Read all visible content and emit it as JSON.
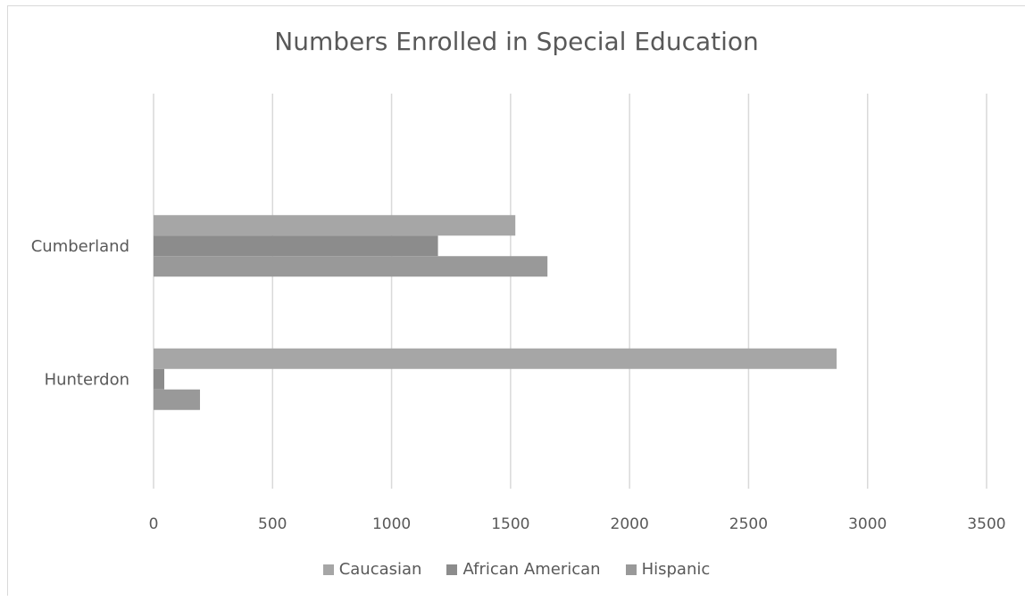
{
  "chart_data": {
    "type": "bar",
    "orientation": "horizontal",
    "title": "Numbers Enrolled in Special Education",
    "categories": [
      "Cumberland",
      "Hunterdon"
    ],
    "series": [
      {
        "name": "Caucasian",
        "values": [
          1520,
          2870
        ],
        "color": "#a6a6a6"
      },
      {
        "name": "African American",
        "values": [
          1195,
          45
        ],
        "color": "#8c8c8c"
      },
      {
        "name": "Hispanic",
        "values": [
          1655,
          195
        ],
        "color": "#999999"
      }
    ],
    "xlim": [
      0,
      3500
    ],
    "x_ticks": [
      "0",
      "500",
      "1000",
      "1500",
      "2000",
      "2500",
      "3000",
      "3500"
    ],
    "grid": true,
    "legend_position": "bottom"
  }
}
